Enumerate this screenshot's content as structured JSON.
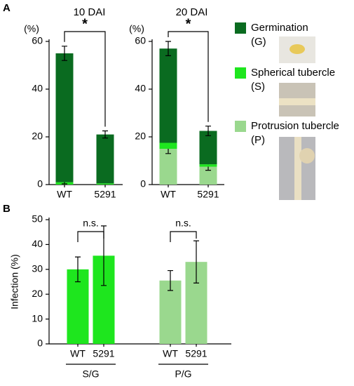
{
  "chart_data": [
    {
      "type": "stacked_bar",
      "panel": "A",
      "title": "10 DAI",
      "ylabel": "(%)",
      "categories": [
        "WT",
        "5291"
      ],
      "series": [
        {
          "name": "Protrusion tubercle",
          "short": "(P)",
          "color": "#9ad88e",
          "values": [
            0,
            0
          ],
          "errors": [
            null,
            null
          ]
        },
        {
          "name": "Spherical tubercle",
          "short": "(S)",
          "color": "#1ee61e",
          "values": [
            1,
            0.5
          ],
          "errors": [
            0.7,
            null
          ]
        },
        {
          "name": "Germination",
          "short": "(G)",
          "color": "#0a6b20",
          "values": [
            54,
            20.5
          ],
          "errors": [
            3,
            1.5
          ]
        }
      ],
      "ylim": [
        0,
        60
      ],
      "yticks": [
        0,
        20,
        40,
        60
      ],
      "annotation": "*"
    },
    {
      "type": "stacked_bar",
      "title": "20 DAI",
      "ylabel": "(%)",
      "categories": [
        "WT",
        "5291"
      ],
      "series": [
        {
          "name": "Protrusion tubercle",
          "color": "#9ad88e",
          "values": [
            15,
            7.5
          ],
          "errors": [
            2,
            1.5
          ]
        },
        {
          "name": "Spherical tubercle",
          "color": "#1ee61e",
          "values": [
            2.5,
            1
          ],
          "errors": [
            null,
            null
          ]
        },
        {
          "name": "Germination",
          "color": "#0a6b20",
          "values": [
            39.5,
            14
          ],
          "errors": [
            3,
            2
          ]
        }
      ],
      "ylim": [
        0,
        60
      ],
      "yticks": [
        0,
        20,
        40,
        60
      ],
      "annotation": "*"
    },
    {
      "type": "bar",
      "panel": "B",
      "ylabel": "Infection (%)",
      "categories": [
        "WT",
        "5291",
        "WT",
        "5291"
      ],
      "groups": [
        "S/G",
        "P/G"
      ],
      "values": [
        30,
        35.5,
        25.5,
        33
      ],
      "errors": [
        5,
        12,
        4,
        8.5
      ],
      "colors": [
        "#1ee61e",
        "#1ee61e",
        "#9ad88e",
        "#9ad88e"
      ],
      "ylim": [
        0,
        50
      ],
      "yticks": [
        0,
        10,
        20,
        30,
        40,
        50
      ],
      "annotation": "n.s."
    }
  ]
}
